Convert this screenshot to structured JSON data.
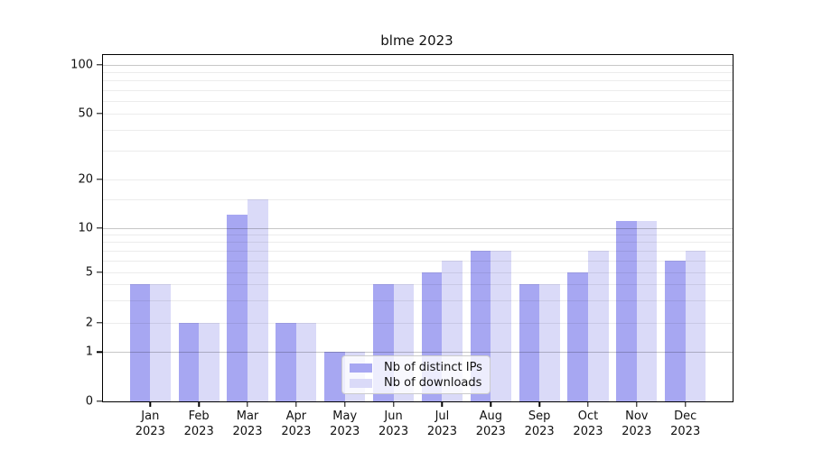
{
  "chart_data": {
    "type": "bar",
    "title": "blme 2023",
    "categories": [
      "Jan",
      "Feb",
      "Mar",
      "Apr",
      "May",
      "Jun",
      "Jul",
      "Aug",
      "Sep",
      "Oct",
      "Nov",
      "Dec"
    ],
    "x_tick_year": "2023",
    "series": [
      {
        "name": "Nb of distinct IPs",
        "color": "#a7a7f2",
        "values": [
          4,
          2,
          12,
          2,
          1,
          4,
          5,
          7,
          4,
          5,
          11,
          6
        ]
      },
      {
        "name": "Nb of downloads",
        "color": "#dadaf8",
        "values": [
          4,
          2,
          15,
          2,
          1,
          4,
          6,
          7,
          4,
          7,
          11,
          7
        ]
      }
    ],
    "y_axis": {
      "scale": "log-like",
      "ylim": [
        0,
        120
      ],
      "ticks": [
        {
          "label": "100",
          "value": 100
        },
        {
          "label": "50",
          "value": 50
        },
        {
          "label": "20",
          "value": 20
        },
        {
          "label": "10",
          "value": 10
        },
        {
          "label": "5",
          "value": 5
        },
        {
          "label": "2",
          "value": 2
        },
        {
          "label": "1",
          "value": 1
        },
        {
          "label": "0",
          "value": 0
        }
      ],
      "decade_gridline_values": [
        1,
        10,
        100
      ],
      "minor_gridline_values": [
        3,
        4,
        6,
        7,
        8,
        9,
        15,
        30,
        40,
        60,
        70,
        80,
        90
      ],
      "scale_anchors": [
        [
          0,
          0
        ],
        [
          1,
          0.1424
        ],
        [
          2,
          0.2273
        ],
        [
          5,
          0.3736
        ],
        [
          10,
          0.5013
        ],
        [
          20,
          0.6406
        ],
        [
          50,
          0.8307
        ],
        [
          100,
          0.9721
        ]
      ]
    },
    "legend_position": "inside bottom-center",
    "grid": "horizontal major+minor, drawn above bars"
  }
}
